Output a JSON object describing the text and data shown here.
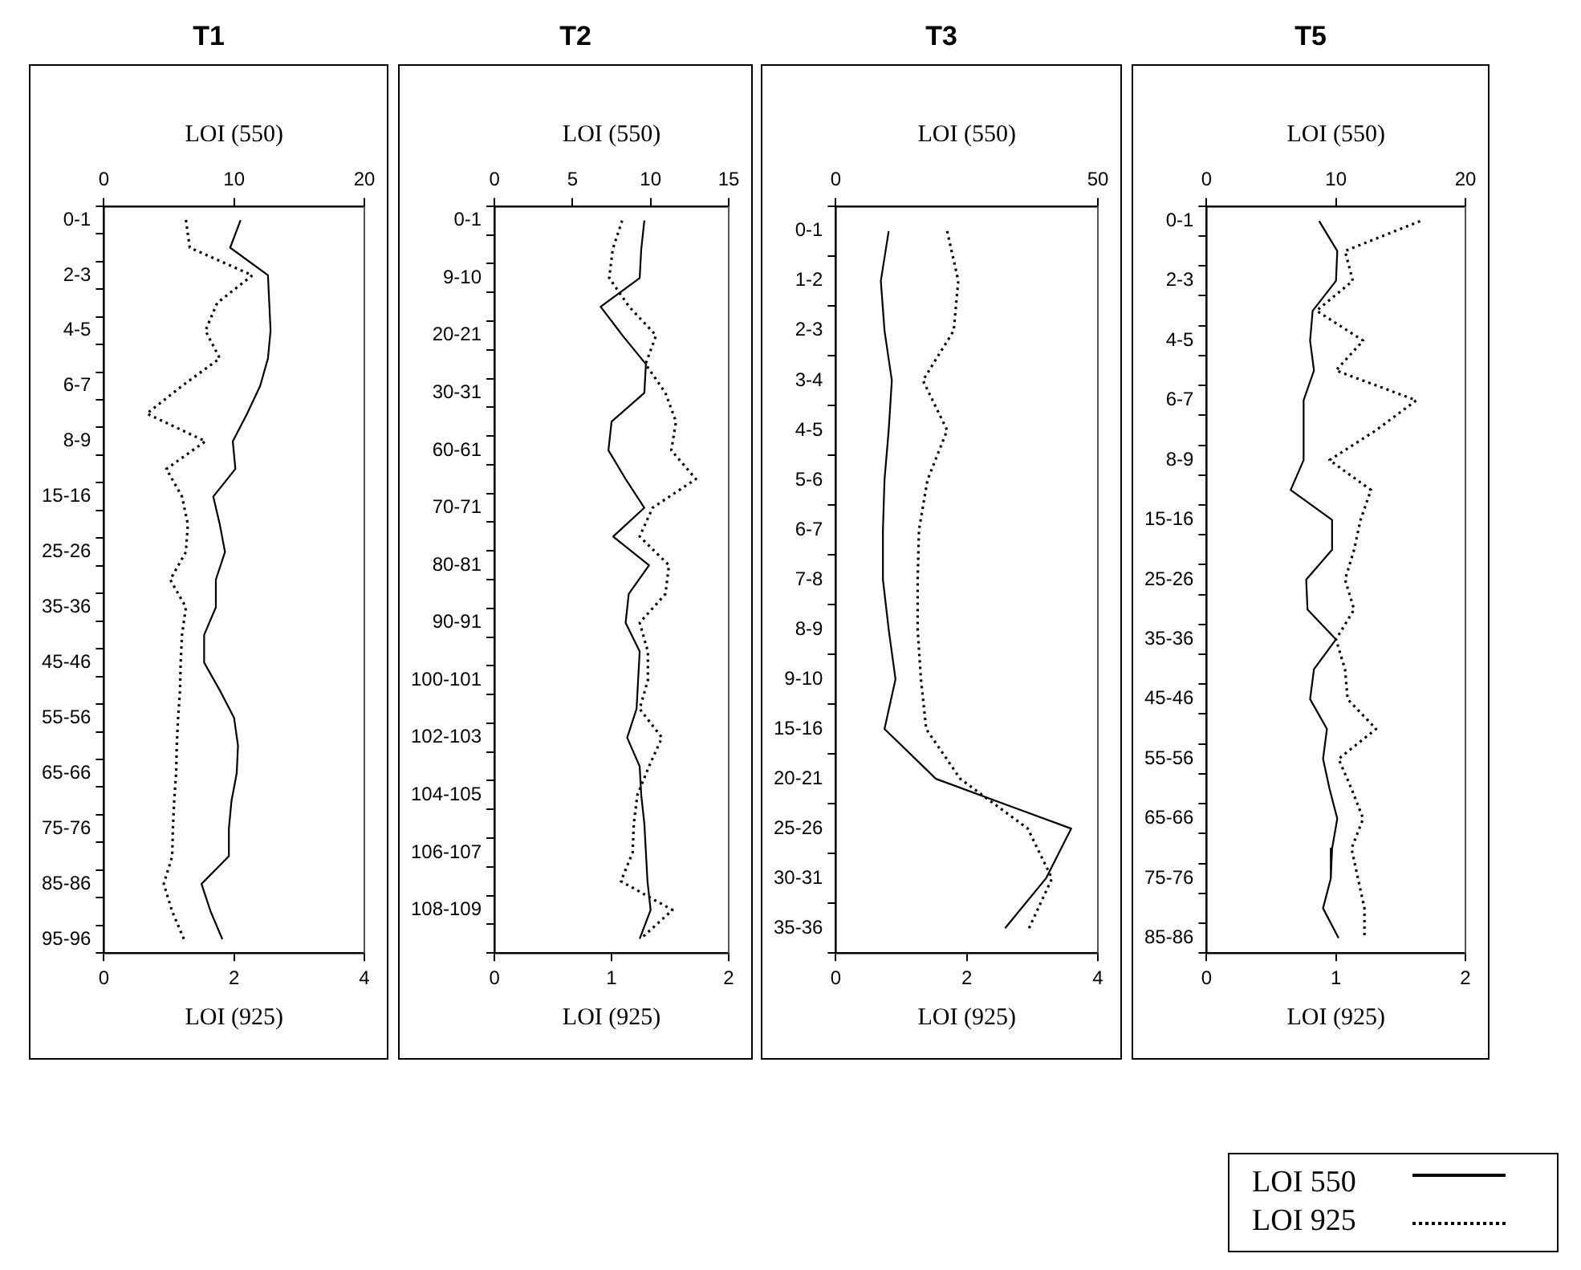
{
  "chart_data": [
    {
      "type": "line",
      "title": "T1",
      "orientation": "horizontal",
      "x2label": "LOI (550)",
      "xlabel": "LOI (925)",
      "x2lim": [
        0,
        20
      ],
      "x2ticks": [
        0,
        10,
        20
      ],
      "xlim": [
        0,
        4
      ],
      "xticks": [
        0,
        2,
        4
      ],
      "grid": false,
      "marker": "none",
      "categories": [
        "0-1",
        null,
        "2-3",
        null,
        "4-5",
        null,
        "6-7",
        null,
        "8-9",
        null,
        "15-16",
        null,
        "25-26",
        null,
        "35-36",
        null,
        "45-46",
        null,
        "55-56",
        null,
        "65-66",
        null,
        "75-76",
        null,
        "85-86",
        null,
        "95-96"
      ],
      "series": [
        {
          "color": "#000000",
          "axis": "x2",
          "line_style": "solid",
          "values": [
            10.5,
            9.7,
            12.6,
            12.7,
            12.8,
            12.6,
            12.0,
            11.0,
            9.9,
            10.1,
            8.4,
            8.9,
            9.3,
            8.6,
            8.6,
            7.7,
            7.7,
            8.9,
            10.0,
            10.3,
            10.2,
            9.8,
            9.6,
            9.6,
            7.5,
            8.2,
            9.1
          ]
        },
        {
          "color": "#000000",
          "line_style": "dotted",
          "values": [
            1.26,
            1.32,
            2.28,
            1.74,
            1.56,
            1.78,
            1.2,
            0.66,
            1.56,
            0.96,
            1.2,
            1.29,
            1.26,
            1.02,
            1.26,
            1.2,
            1.18,
            1.17,
            1.14,
            1.12,
            1.11,
            1.08,
            1.06,
            1.05,
            0.92,
            1.05,
            1.23
          ]
        }
      ]
    },
    {
      "type": "line",
      "title": "T2",
      "orientation": "horizontal",
      "x2label": "LOI (550)",
      "xlabel": "LOI (925)",
      "x2lim": [
        0,
        15
      ],
      "x2ticks": [
        0,
        5,
        10,
        15
      ],
      "xlim": [
        0,
        2
      ],
      "xticks": [
        0,
        1,
        2
      ],
      "grid": false,
      "marker": "none",
      "categories": [
        "0-1",
        null,
        "9-10",
        null,
        "20-21",
        null,
        "30-31",
        null,
        "60-61",
        null,
        "70-71",
        null,
        "80-81",
        null,
        "90-91",
        null,
        "100-101",
        null,
        "102-103",
        null,
        "104-105",
        null,
        "106-107",
        null,
        "108-109",
        null
      ],
      "series": [
        {
          "color": "#000000",
          "axis": "x2",
          "line_style": "solid",
          "values": [
            9.6,
            9.4,
            9.3,
            6.8,
            8.2,
            9.7,
            9.6,
            7.5,
            7.3,
            8.4,
            9.6,
            7.6,
            9.9,
            8.6,
            8.4,
            9.3,
            9.2,
            9.1,
            8.5,
            9.3,
            9.4,
            9.6,
            9.7,
            9.8,
            10.0,
            9.3
          ]
        },
        {
          "color": "#000000",
          "line_style": "dotted",
          "values": [
            1.09,
            1.01,
            0.98,
            1.15,
            1.38,
            1.29,
            1.46,
            1.55,
            1.51,
            1.72,
            1.35,
            1.24,
            1.49,
            1.46,
            1.24,
            1.31,
            1.31,
            1.24,
            1.43,
            1.32,
            1.22,
            1.19,
            1.18,
            1.08,
            1.52,
            1.25
          ]
        }
      ]
    },
    {
      "type": "line",
      "title": "T3",
      "orientation": "horizontal",
      "x2label": "LOI (550)",
      "xlabel": "LOI (925)",
      "x2lim": [
        0,
        50
      ],
      "x2ticks": [
        0,
        50
      ],
      "xlim": [
        0,
        4
      ],
      "xticks": [
        0,
        2,
        4
      ],
      "grid": false,
      "marker": "none",
      "categories": [
        "0-1",
        "1-2",
        "2-3",
        "3-4",
        "4-5",
        "5-6",
        "6-7",
        "7-8",
        "8-9",
        "9-10",
        "15-16",
        "20-21",
        "25-26",
        "30-31",
        "35-36"
      ],
      "series": [
        {
          "color": "#000000",
          "axis": "x2",
          "line_style": "solid",
          "values": [
            10.1,
            8.6,
            9.3,
            10.7,
            10.1,
            9.3,
            9.0,
            9.0,
            10.1,
            11.4,
            9.3,
            19.1,
            44.9,
            40.1,
            32.3
          ]
        },
        {
          "color": "#000000",
          "line_style": "dotted",
          "values": [
            1.7,
            1.87,
            1.8,
            1.33,
            1.7,
            1.4,
            1.27,
            1.25,
            1.25,
            1.3,
            1.38,
            1.9,
            2.93,
            3.3,
            2.95
          ]
        }
      ]
    },
    {
      "type": "line",
      "title": "T5",
      "orientation": "horizontal",
      "x2label": "LOI (550)",
      "xlabel": "LOI (925)",
      "x2lim": [
        0,
        20
      ],
      "x2ticks": [
        0,
        10,
        20
      ],
      "xlim": [
        0,
        2
      ],
      "xticks": [
        0,
        1,
        2
      ],
      "grid": false,
      "legend": "bottom right",
      "marker": "none",
      "categories": [
        "0-1",
        null,
        "2-3",
        null,
        "4-5",
        null,
        "6-7",
        null,
        "8-9",
        null,
        "15-16",
        null,
        "25-26",
        null,
        "35-36",
        null,
        "45-46",
        null,
        "55-56",
        null,
        "65-66",
        null,
        "75-76",
        null,
        "85-86"
      ],
      "series": [
        {
          "name": "LOI 550",
          "color": "#000000",
          "axis": "x2",
          "line_style": "solid",
          "values": [
            8.7,
            10.1,
            10.0,
            8.2,
            8.0,
            8.3,
            7.5,
            7.5,
            7.5,
            6.5,
            9.7,
            9.7,
            7.7,
            7.8,
            10.0,
            8.3,
            8.0,
            9.3,
            9.0,
            9.5,
            10.1,
            9.7,
            9.6,
            9.0,
            10.2
          ]
        },
        {
          "name": "LOI 925",
          "color": "#000000",
          "line_style": "dotted",
          "values": [
            1.65,
            1.07,
            1.13,
            0.85,
            1.21,
            1.0,
            1.62,
            1.31,
            0.95,
            1.27,
            1.19,
            1.14,
            1.07,
            1.14,
            1.0,
            1.07,
            1.09,
            1.31,
            1.02,
            1.12,
            1.21,
            1.12,
            1.17,
            1.22,
            1.22
          ]
        }
      ]
    }
  ]
}
